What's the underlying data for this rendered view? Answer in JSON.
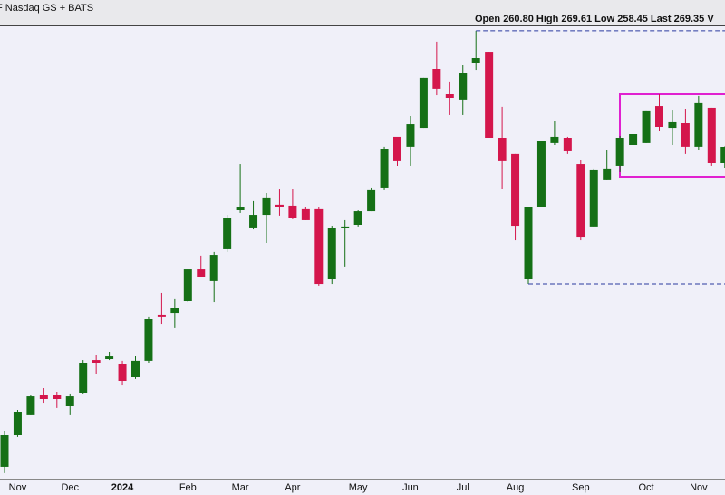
{
  "header": {
    "source": "F  Nasdaq GS + BATS",
    "stats": [
      {
        "label": "Open",
        "value": "260.80"
      },
      {
        "label": "High",
        "value": "269.61"
      },
      {
        "label": "Low",
        "value": "258.45"
      },
      {
        "label": "Last",
        "value": "269.35"
      }
    ],
    "cut": "V"
  },
  "chart_data": {
    "type": "candlestick",
    "categories": [
      null,
      "Nov",
      null,
      null,
      null,
      "Dec",
      null,
      null,
      null,
      "2024",
      null,
      null,
      null,
      null,
      "Feb",
      null,
      null,
      null,
      "Mar",
      null,
      null,
      null,
      "Apr",
      null,
      null,
      null,
      null,
      "May",
      null,
      null,
      null,
      "Jun",
      null,
      null,
      null,
      "Jul",
      null,
      null,
      null,
      "Aug",
      null,
      null,
      null,
      null,
      "Sep",
      null,
      null,
      null,
      null,
      "Oct",
      null,
      null,
      null,
      "Nov",
      null,
      null
    ],
    "open": [
      101.7,
      118.3,
      128.8,
      139.2,
      139.2,
      133.5,
      140.2,
      157.7,
      158.2,
      155.4,
      148.7,
      157.3,
      181.5,
      182.4,
      188.6,
      205.2,
      199.1,
      215.7,
      236.1,
      227.1,
      233.7,
      239.0,
      238.5,
      237.1,
      237.1,
      200.0,
      226.6,
      228.5,
      235.6,
      248.0,
      274.6,
      269.4,
      279.3,
      310.2,
      296.9,
      294.1,
      313.1,
      319.2,
      274.1,
      265.6,
      200.0,
      238.0,
      271.3,
      274.1,
      260.3,
      227.6,
      252.3,
      259.4,
      270.3,
      271.3,
      290.7,
      279.3,
      281.7,
      269.4,
      289.8,
      260.8
    ],
    "high": [
      120.7,
      131.6,
      139.2,
      143.0,
      141.1,
      139.7,
      157.7,
      160.1,
      162.0,
      157.3,
      159.6,
      180.1,
      192.9,
      189.6,
      205.2,
      212.4,
      214.3,
      233.7,
      260.3,
      240.9,
      245.1,
      247.0,
      247.5,
      238.0,
      238.0,
      228.0,
      230.9,
      236.1,
      248.0,
      269.4,
      274.6,
      285.5,
      305.5,
      324.5,
      303.6,
      312.1,
      330.2,
      319.2,
      290.3,
      265.6,
      238.0,
      272.2,
      282.7,
      274.6,
      262.7,
      258.0,
      267.5,
      275.1,
      276.0,
      288.4,
      296.9,
      288.8,
      289.3,
      296.0,
      289.8,
      269.61
    ],
    "low": [
      98.4,
      117.4,
      128.8,
      134.9,
      132.6,
      128.8,
      139.7,
      150.6,
      157.7,
      144.4,
      147.8,
      156.3,
      176.7,
      174.4,
      188.1,
      201.0,
      188.1,
      214.3,
      234.7,
      226.1,
      219.0,
      233.3,
      231.4,
      230.9,
      196.7,
      197.6,
      206.7,
      227.6,
      235.6,
      246.6,
      259.4,
      259.4,
      279.3,
      296.4,
      286.0,
      286.0,
      309.7,
      274.1,
      247.5,
      220.4,
      197.6,
      238.0,
      270.3,
      265.6,
      220.4,
      227.6,
      252.3,
      256.1,
      270.3,
      271.3,
      277.4,
      270.3,
      265.6,
      267.9,
      259.4,
      258.45
    ],
    "close": [
      118.3,
      130.2,
      138.7,
      137.3,
      137.3,
      138.7,
      156.3,
      156.3,
      159.6,
      146.8,
      157.3,
      179.1,
      180.1,
      184.8,
      205.2,
      201.4,
      212.8,
      232.3,
      238.0,
      233.7,
      242.8,
      238.0,
      232.3,
      230.9,
      197.6,
      226.6,
      227.6,
      235.6,
      246.6,
      268.4,
      261.8,
      281.2,
      305.5,
      299.8,
      295.0,
      308.3,
      315.9,
      274.1,
      261.8,
      228.0,
      238.0,
      272.2,
      274.6,
      267.0,
      222.3,
      257.5,
      258.0,
      274.1,
      276.0,
      288.4,
      279.8,
      282.2,
      269.4,
      292.2,
      260.8,
      269.35
    ],
    "up_color": "#157016",
    "down_color": "#d4164c",
    "ylim": [
      95.5,
      333.0
    ]
  }
}
